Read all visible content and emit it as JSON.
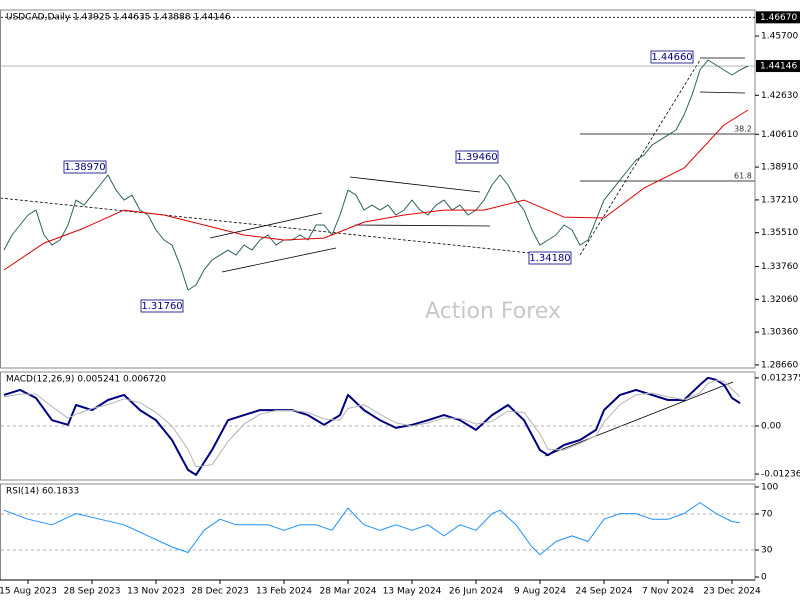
{
  "chart_data": [
    {
      "type": "line",
      "title": "USDCAD,Daily 1.43925 1.44635 1.43888 1.44146",
      "watermark": "Action Forex",
      "categories": [
        null,
        null,
        null,
        "15 Aug 2023",
        null,
        null,
        null,
        null,
        null,
        null,
        null,
        "28 Sep 2023",
        null,
        null,
        null,
        null,
        null,
        null,
        null,
        "13 Nov 2023",
        null,
        null,
        null,
        null,
        null,
        null,
        null,
        "28 Dec 2023",
        null,
        null,
        null,
        null,
        null,
        null,
        null,
        "13 Feb 2024",
        null,
        null,
        null,
        null,
        null,
        null,
        null,
        "28 Mar 2024",
        null,
        null,
        null,
        null,
        null,
        null,
        null,
        "13 May 2024",
        null,
        null,
        null,
        null,
        null,
        null,
        null,
        "26 Jun 2024",
        null,
        null,
        null,
        null,
        null,
        null,
        null,
        "9 Aug 2024",
        null,
        null,
        null,
        null,
        null,
        null,
        null,
        "24 Sep 2024",
        null,
        null,
        null,
        null,
        null,
        null,
        null,
        "7 Nov 2024",
        null,
        null,
        null,
        null,
        null,
        null,
        null,
        "23 Dec 2024",
        null,
        null
      ],
      "series": [
        {
          "color": "#2f5f5f",
          "values": [
            1.3461,
            1.3539,
            1.3591,
            1.3643,
            1.3668,
            1.3539,
            1.3487,
            1.3513,
            1.3591,
            1.372,
            1.3694,
            1.3746,
            1.3798,
            1.385,
            1.3772,
            1.372,
            1.3746,
            1.3668,
            1.3643,
            1.3565,
            1.3513,
            1.3487,
            1.3383,
            1.3254,
            1.328,
            1.3358,
            1.3409,
            1.3435,
            1.3461,
            1.3435,
            1.3487,
            1.3461,
            1.3513,
            1.3539,
            1.3487,
            1.3513,
            1.3513,
            1.3539,
            1.3513,
            1.3591,
            1.3591,
            1.3539,
            1.3643,
            1.3772,
            1.3746,
            1.3668,
            1.3694,
            1.3668,
            1.3694,
            1.3643,
            1.3668,
            1.372,
            1.3668,
            1.3643,
            1.3694,
            1.372,
            1.3668,
            1.3694,
            1.3643,
            1.3668,
            1.372,
            1.3798,
            1.385,
            1.3798,
            1.372,
            1.3668,
            1.3565,
            1.3487,
            1.3513,
            1.3539,
            1.3591,
            1.3565,
            1.3487,
            1.3513,
            1.3617,
            1.372,
            1.3772,
            1.3824,
            1.3876,
            1.3928,
            1.3953,
            1.4005,
            1.4031,
            1.4057,
            1.4083,
            1.4161,
            1.4264,
            1.4394,
            1.4446,
            1.442,
            1.4394,
            1.4368,
            1.4394,
            1.4415
          ]
        },
        {
          "color": "#e00000",
          "x": [
            0,
            5,
            10,
            15,
            20,
            25,
            30,
            35,
            40,
            45,
            50,
            55,
            60,
            65,
            70,
            75,
            80,
            85,
            90,
            93
          ],
          "values": [
            1.3358,
            1.3497,
            1.3575,
            1.3668,
            1.3643,
            1.3591,
            1.3539,
            1.3513,
            1.3523,
            1.3606,
            1.3643,
            1.3668,
            1.3668,
            1.372,
            1.3632,
            1.3627,
            1.3782,
            1.3886,
            1.4109,
            1.4187
          ]
        }
      ],
      "ylim": [
        1.285,
        1.4705
      ],
      "yticks": [
        {
          "value": 1.457,
          "label": "1.45700"
        },
        {
          "value": 1.4263,
          "label": "1.42630"
        },
        {
          "value": 1.4061,
          "label": "1.40610"
        },
        {
          "value": 1.3891,
          "label": "1.38910"
        },
        {
          "value": 1.3721,
          "label": "1.37210"
        },
        {
          "value": 1.3551,
          "label": "1.35510"
        },
        {
          "value": 1.3376,
          "label": "1.33760"
        },
        {
          "value": 1.3206,
          "label": "1.32060"
        },
        {
          "value": 1.3036,
          "label": "1.30360"
        },
        {
          "value": 1.2866,
          "label": "1.28660"
        }
      ],
      "price_levels": [
        {
          "value": 1.4667,
          "label": "1.46670",
          "style": "dotted"
        },
        {
          "value": 1.44146,
          "label": "1.44146",
          "style": "solid"
        }
      ],
      "annotations": [
        "1.44660",
        "1.39460",
        "1.38970",
        "1.31760",
        "1.34180",
        "38.2",
        "61.8"
      ]
    },
    {
      "type": "line",
      "title": "MACD(12,26,9) 0.005241 0.006720",
      "series": [
        {
          "color": "#000080",
          "x": [
            0,
            2,
            4,
            6,
            8,
            9,
            11,
            13,
            15,
            17,
            19,
            21,
            23,
            24,
            26,
            28,
            30,
            32,
            34,
            36,
            38,
            40,
            42,
            43,
            45,
            47,
            49,
            51,
            53,
            55,
            57,
            59,
            61,
            63,
            65,
            67,
            68,
            70,
            72,
            74,
            75,
            77,
            79,
            81,
            83,
            85,
            87,
            88,
            89,
            90,
            91,
            92
          ],
          "values": [
            0.008,
            0.0093,
            0.0072,
            0.0015,
            0.0003,
            0.0054,
            0.0041,
            0.0067,
            0.008,
            0.0041,
            0.0015,
            -0.0036,
            -0.0113,
            -0.0126,
            -0.0062,
            0.0015,
            0.0028,
            0.0041,
            0.0041,
            0.0041,
            0.0028,
            0.0003,
            0.0028,
            0.008,
            0.0041,
            0.0015,
            -0.0005,
            0.0003,
            0.0015,
            0.0028,
            0.0015,
            -0.001,
            0.0028,
            0.0054,
            0.0015,
            -0.0062,
            -0.0075,
            -0.0049,
            -0.0036,
            -0.001,
            0.0041,
            0.008,
            0.0093,
            0.008,
            0.0067,
            0.0067,
            0.0106,
            0.0124,
            0.0119,
            0.0106,
            0.0072,
            0.0059
          ]
        },
        {
          "color": "#b4b4b4",
          "x": [
            0,
            2,
            4,
            6,
            8,
            9,
            11,
            13,
            15,
            17,
            19,
            21,
            23,
            24,
            26,
            28,
            30,
            32,
            34,
            36,
            38,
            40,
            42,
            43,
            45,
            47,
            49,
            51,
            53,
            55,
            57,
            59,
            61,
            63,
            65,
            67,
            68,
            70,
            72,
            74,
            75,
            77,
            79,
            81,
            83,
            85,
            87,
            88,
            89,
            90,
            91,
            92
          ],
          "values": [
            0.0075,
            0.0082,
            0.0082,
            0.005,
            0.002,
            0.003,
            0.0045,
            0.0055,
            0.007,
            0.006,
            0.0035,
            0.0,
            -0.006,
            -0.0105,
            -0.01,
            -0.004,
            0.0005,
            0.003,
            0.004,
            0.004,
            0.0035,
            0.0018,
            0.0015,
            0.0045,
            0.0055,
            0.003,
            0.0008,
            0.0,
            0.0008,
            0.002,
            0.002,
            0.0005,
            0.0012,
            0.0038,
            0.0035,
            -0.002,
            -0.006,
            -0.0062,
            -0.0045,
            -0.0025,
            0.001,
            0.0055,
            0.008,
            0.0085,
            0.0075,
            0.0068,
            0.0085,
            0.011,
            0.0118,
            0.0115,
            0.0095,
            0.0075
          ]
        }
      ],
      "ylim": [
        -0.0139,
        0.0139
      ],
      "yticks": [
        0.012375,
        {
          "value": 0,
          "label": "0.00"
        },
        -0.012367
      ],
      "grid": true
    },
    {
      "type": "line",
      "title": "RSI(14) 60.1833",
      "series": [
        {
          "color": "#1e90ff",
          "x": [
            0,
            3,
            6,
            9,
            12,
            15,
            18,
            21,
            23,
            25,
            27,
            29,
            31,
            33,
            35,
            37,
            39,
            41,
            43,
            45,
            47,
            49,
            51,
            53,
            55,
            57,
            59,
            61,
            62,
            64,
            66,
            67,
            69,
            71,
            73,
            75,
            77,
            79,
            81,
            83,
            85,
            87,
            89,
            91,
            92
          ],
          "values": [
            74.1,
            64.2,
            58.0,
            70.4,
            64.2,
            58.0,
            45.7,
            33.3,
            27.2,
            51.9,
            64.2,
            58.0,
            58.0,
            58.0,
            51.9,
            58.0,
            58.0,
            51.9,
            76.5,
            58.0,
            51.9,
            58.0,
            51.9,
            58.0,
            45.7,
            58.0,
            51.9,
            70.4,
            74.1,
            58.0,
            33.3,
            24.7,
            39.5,
            45.7,
            39.5,
            64.2,
            70.4,
            70.4,
            64.2,
            64.2,
            70.4,
            82.7,
            70.4,
            61.7,
            60.2
          ]
        }
      ],
      "ylim": [
        -3.3,
        103.3
      ],
      "yticks": [
        100,
        70,
        30,
        0
      ],
      "grid": true
    }
  ]
}
